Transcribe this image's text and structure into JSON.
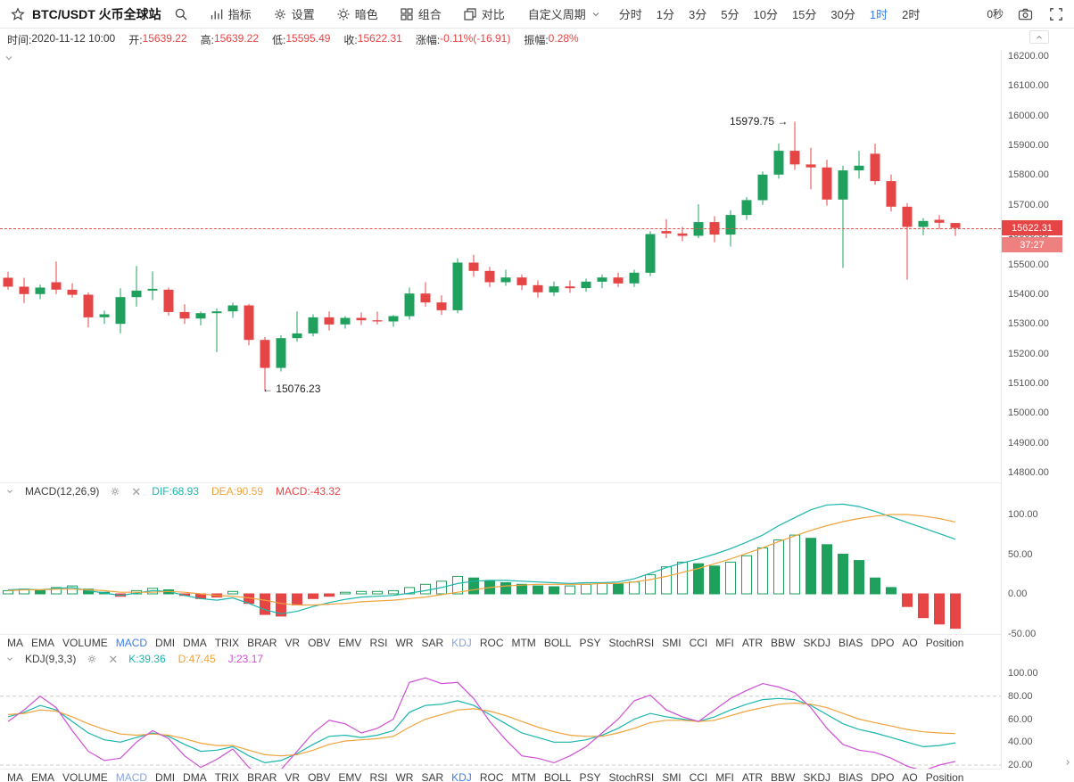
{
  "colors": {
    "up": "#1fa05c",
    "down": "#e64545",
    "accent_blue": "#3b7ded",
    "dif_teal": "#1ab5ae",
    "dea_orange": "#f0a33c",
    "j_magenta": "#cf4fd4",
    "price_badge_red": "#e64545",
    "countdown_red": "#ef8080"
  },
  "toolbar": {
    "symbol_title": "BTC/USDT 火币全球站",
    "menu_items": [
      {
        "label": "指标"
      },
      {
        "label": "设置"
      },
      {
        "label": "暗色"
      },
      {
        "label": "组合"
      },
      {
        "label": "对比"
      }
    ],
    "custom_period_label": "自定义周期",
    "periods": [
      "分时",
      "1分",
      "3分",
      "5分",
      "10分",
      "15分",
      "30分",
      "1时",
      "2时"
    ],
    "active_period": "1时",
    "countdown_right": "0秒"
  },
  "infobar": {
    "items": [
      {
        "label": "时间:",
        "value": "2020-11-12 10:00",
        "color": "#333333"
      },
      {
        "label": "开:",
        "value": "15639.22",
        "color": "#e64545"
      },
      {
        "label": "高:",
        "value": "15639.22",
        "color": "#e64545"
      },
      {
        "label": "低:",
        "value": "15595.49",
        "color": "#e64545"
      },
      {
        "label": "收:",
        "value": "15622.31",
        "color": "#e64545"
      },
      {
        "label": "涨幅:",
        "value": "-0.11%(-16.91)",
        "color": "#e64545"
      },
      {
        "label": "振幅:",
        "value": "0.28%",
        "color": "#e64545"
      }
    ]
  },
  "main_panel": {
    "last_price": "15622.31",
    "countdown": "37:27",
    "high_annotation": "15979.75 →",
    "low_annotation": "← 15076.23"
  },
  "macd_panel": {
    "title": "MACD(12,26,9)",
    "values": [
      {
        "label": "DIF:68.93",
        "color": "#1ab5ae"
      },
      {
        "label": "DEA:90.59",
        "color": "#f0a33c"
      },
      {
        "label": "MACD:-43.32",
        "color": "#e64545"
      }
    ]
  },
  "kdj_panel": {
    "title": "KDJ(9,3,3)",
    "values": [
      {
        "label": "K:39.36",
        "color": "#1ab5ae"
      },
      {
        "label": "D:47.45",
        "color": "#f0a33c"
      },
      {
        "label": "J:23.17",
        "color": "#cf4fd4"
      }
    ]
  },
  "indicator_tabs": {
    "items": [
      "MA",
      "EMA",
      "VOLUME",
      "MACD",
      "DMI",
      "DMA",
      "TRIX",
      "BRAR",
      "VR",
      "OBV",
      "EMV",
      "RSI",
      "WR",
      "SAR",
      "KDJ",
      "ROC",
      "MTM",
      "BOLL",
      "PSY",
      "StochRSI",
      "SMI",
      "CCI",
      "MFI",
      "ATR",
      "BBW",
      "SKDJ",
      "BIAS",
      "DPO",
      "AO",
      "Position"
    ],
    "bar1_active": "MACD",
    "bar1_semi": "KDJ",
    "bar2_active": "KDJ",
    "bar2_semi": "MACD"
  },
  "chart_data": [
    {
      "type": "candlestick",
      "title": "BTC/USDT",
      "interval": "1时",
      "last_candle_time": "2020-11-12 10:00",
      "y_axis": {
        "labels": [
          "16200.00",
          "16100.00",
          "16000.00",
          "15900.00",
          "15800.00",
          "15700.00",
          "15600.00",
          "15500.00",
          "15400.00",
          "15300.00",
          "15200.00",
          "15100.00",
          "15000.00",
          "14900.00",
          "14800.00"
        ],
        "max": 16200,
        "min": 14800
      },
      "last_price": 15622.31,
      "marked_high": 15979.75,
      "marked_low": 15076.23,
      "candles": [
        [
          15455,
          15475,
          15415,
          15425
        ],
        [
          15425,
          15455,
          15370,
          15400
        ],
        [
          15400,
          15432,
          15383,
          15422
        ],
        [
          15440,
          15510,
          15400,
          15415
        ],
        [
          15415,
          15436,
          15388,
          15398
        ],
        [
          15398,
          15406,
          15288,
          15322
        ],
        [
          15322,
          15345,
          15300,
          15332
        ],
        [
          15300,
          15420,
          15268,
          15390
        ],
        [
          15390,
          15495,
          15358,
          15412
        ],
        [
          15412,
          15476,
          15380,
          15418
        ],
        [
          15415,
          15422,
          15328,
          15340
        ],
        [
          15340,
          15366,
          15300,
          15318
        ],
        [
          15318,
          15342,
          15295,
          15336
        ],
        [
          15336,
          15352,
          15205,
          15342
        ],
        [
          15342,
          15372,
          15320,
          15362
        ],
        [
          15362,
          15367,
          15228,
          15246
        ],
        [
          15246,
          15256,
          15076.23,
          15152
        ],
        [
          15152,
          15262,
          15140,
          15252
        ],
        [
          15252,
          15342,
          15240,
          15268
        ],
        [
          15268,
          15332,
          15258,
          15322
        ],
        [
          15322,
          15342,
          15278,
          15298
        ],
        [
          15298,
          15326,
          15284,
          15320
        ],
        [
          15320,
          15338,
          15296,
          15312
        ],
        [
          15312,
          15341,
          15298,
          15308
        ],
        [
          15308,
          15330,
          15290,
          15326
        ],
        [
          15326,
          15422,
          15314,
          15402
        ],
        [
          15402,
          15440,
          15358,
          15372
        ],
        [
          15372,
          15396,
          15330,
          15346
        ],
        [
          15346,
          15520,
          15336,
          15506
        ],
        [
          15506,
          15532,
          15458,
          15478
        ],
        [
          15478,
          15492,
          15424,
          15440
        ],
        [
          15440,
          15482,
          15428,
          15456
        ],
        [
          15456,
          15466,
          15414,
          15430
        ],
        [
          15430,
          15446,
          15388,
          15406
        ],
        [
          15406,
          15442,
          15394,
          15426
        ],
        [
          15426,
          15446,
          15404,
          15420
        ],
        [
          15420,
          15452,
          15408,
          15442
        ],
        [
          15442,
          15466,
          15420,
          15456
        ],
        [
          15456,
          15472,
          15424,
          15436
        ],
        [
          15436,
          15482,
          15424,
          15472
        ],
        [
          15472,
          15612,
          15460,
          15602
        ],
        [
          15612,
          15652,
          15588,
          15604
        ],
        [
          15604,
          15626,
          15578,
          15596
        ],
        [
          15596,
          15702,
          15588,
          15642
        ],
        [
          15642,
          15662,
          15574,
          15600
        ],
        [
          15600,
          15682,
          15560,
          15666
        ],
        [
          15666,
          15726,
          15650,
          15716
        ],
        [
          15716,
          15812,
          15700,
          15802
        ],
        [
          15802,
          15906,
          15788,
          15882
        ],
        [
          15882,
          15979.75,
          15818,
          15836
        ],
        [
          15836,
          15892,
          15752,
          15826
        ],
        [
          15826,
          15852,
          15698,
          15718
        ],
        [
          15718,
          15832,
          15488,
          15816
        ],
        [
          15816,
          15882,
          15788,
          15832
        ],
        [
          15872,
          15906,
          15768,
          15780
        ],
        [
          15780,
          15802,
          15678,
          15694
        ],
        [
          15694,
          15706,
          15448,
          15626
        ],
        [
          15626,
          15656,
          15598,
          15646
        ],
        [
          15650,
          15666,
          15618,
          15640
        ],
        [
          15639.22,
          15639.22,
          15595.49,
          15622.31
        ]
      ]
    },
    {
      "type": "bar",
      "name": "MACD(12,26,9)",
      "y_axis": {
        "labels": [
          "100.00",
          "50.00",
          "0.00",
          "-50.00"
        ],
        "max": 100,
        "min": -50
      },
      "histogram": [
        4,
        6,
        5,
        8,
        10,
        6,
        2,
        -3,
        4,
        7,
        5,
        -2,
        -6,
        -4,
        3,
        -12,
        -26,
        -28,
        -14,
        -6,
        -3,
        2,
        3,
        3,
        4,
        8,
        12,
        16,
        22,
        20,
        16,
        14,
        12,
        10,
        9,
        10,
        12,
        14,
        13,
        15,
        24,
        34,
        40,
        38,
        35,
        40,
        48,
        58,
        68,
        74,
        70,
        62,
        50,
        42,
        20,
        8,
        -16,
        -30,
        -38,
        -43.32
      ],
      "series": [
        {
          "name": "DIF",
          "color": "#1ab5ae",
          "values": [
            5,
            6,
            5,
            7,
            8,
            4,
            1,
            -2,
            1,
            4,
            3,
            -2,
            -6,
            -8,
            -5,
            -12,
            -20,
            -25,
            -22,
            -16,
            -11,
            -7,
            -4,
            -3,
            -2,
            1,
            4,
            8,
            13,
            16,
            17,
            17,
            16,
            15,
            14,
            13,
            14,
            14,
            15,
            19,
            26,
            33,
            39,
            44,
            50,
            57,
            65,
            74,
            86,
            96,
            106,
            112,
            113,
            110,
            104,
            97,
            90,
            83,
            76,
            68.93
          ]
        },
        {
          "name": "DEA",
          "color": "#f0a33c",
          "values": [
            4,
            5,
            5,
            6,
            6,
            5,
            4,
            2,
            2,
            2,
            3,
            2,
            0,
            -2,
            -3,
            -5,
            -8,
            -12,
            -14,
            -14,
            -13,
            -12,
            -10,
            -9,
            -8,
            -6,
            -4,
            -1,
            2,
            5,
            8,
            10,
            11,
            12,
            12,
            12,
            12,
            13,
            13,
            15,
            18,
            22,
            27,
            32,
            38,
            44,
            51,
            58,
            66,
            73,
            80,
            86,
            91,
            95,
            98,
            100,
            100,
            98,
            95,
            90.59
          ]
        }
      ]
    },
    {
      "type": "line",
      "name": "KDJ(9,3,3)",
      "y_axis": {
        "labels": [
          "100.00",
          "80.00",
          "60.00",
          "40.00",
          "20.00"
        ],
        "max": 100,
        "min": 20
      },
      "guides": [
        80,
        20
      ],
      "series": [
        {
          "name": "K",
          "color": "#1ab5ae",
          "values": [
            62,
            66,
            72,
            68,
            58,
            48,
            42,
            40,
            44,
            48,
            45,
            38,
            32,
            33,
            36,
            28,
            22,
            24,
            30,
            38,
            45,
            46,
            44,
            46,
            50,
            66,
            72,
            73,
            76,
            72,
            64,
            56,
            48,
            44,
            40,
            40,
            42,
            46,
            52,
            60,
            65,
            62,
            60,
            58,
            62,
            68,
            73,
            77,
            78,
            77,
            72,
            64,
            56,
            51,
            48,
            44,
            40,
            36,
            37,
            39.36
          ]
        },
        {
          "name": "D",
          "color": "#f0a33c",
          "values": [
            64,
            65,
            68,
            67,
            62,
            56,
            51,
            47,
            46,
            47,
            46,
            43,
            39,
            37,
            37,
            33,
            29,
            28,
            29,
            33,
            38,
            41,
            42,
            43,
            45,
            53,
            60,
            64,
            68,
            69,
            67,
            63,
            58,
            53,
            49,
            46,
            45,
            45,
            48,
            52,
            57,
            59,
            59,
            58,
            59,
            63,
            67,
            70,
            73,
            74,
            73,
            70,
            65,
            60,
            57,
            54,
            51,
            49,
            48,
            47.45
          ]
        },
        {
          "name": "J",
          "color": "#cf4fd4",
          "values": [
            58,
            68,
            80,
            70,
            50,
            32,
            24,
            26,
            40,
            50,
            43,
            28,
            18,
            25,
            34,
            18,
            8,
            16,
            32,
            48,
            59,
            56,
            48,
            52,
            60,
            92,
            96,
            91,
            92,
            78,
            58,
            42,
            28,
            26,
            22,
            28,
            36,
            48,
            60,
            76,
            81,
            68,
            62,
            58,
            68,
            78,
            85,
            91,
            88,
            83,
            70,
            52,
            38,
            33,
            31,
            26,
            19,
            15,
            20,
            23.17
          ]
        }
      ]
    }
  ]
}
